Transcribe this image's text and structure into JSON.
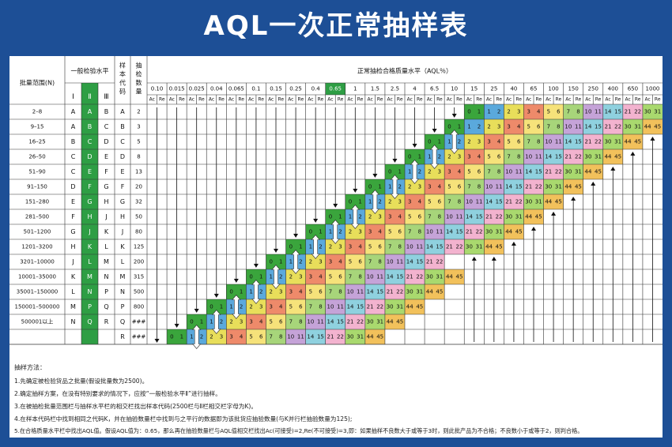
{
  "title": "AQL一次正常抽样表",
  "header": {
    "lot_range": "批量范围(N)",
    "general_level": "一般检验水平",
    "levels": [
      "Ⅰ",
      "Ⅱ",
      "Ⅲ"
    ],
    "code": "样本代码",
    "sample_size": "抽检数量",
    "aql_title": "正常抽检合格质量水平（AQL％）",
    "ac": "Ac",
    "re": "Re"
  },
  "aql_values": [
    "0.10",
    "0.015",
    "0.025",
    "0.04",
    "0.065",
    "0.1",
    "0.15",
    "0.25",
    "0.4",
    "0.65",
    "1",
    "1.5",
    "2.5",
    "4",
    "6.5",
    "10",
    "15",
    "25",
    "40",
    "65",
    "100",
    "150",
    "250",
    "400",
    "650",
    "1000"
  ],
  "highlight_aql_index": 9,
  "rows": [
    {
      "lot": "2–8",
      "l1": "A",
      "l2": "A",
      "l3": "B",
      "code": "A",
      "n": "2"
    },
    {
      "lot": "9–15",
      "l1": "A",
      "l2": "B",
      "l3": "C",
      "code": "B",
      "n": "3"
    },
    {
      "lot": "16–25",
      "l1": "B",
      "l2": "C",
      "l3": "D",
      "code": "C",
      "n": "5"
    },
    {
      "lot": "26–50",
      "l1": "C",
      "l2": "D",
      "l3": "E",
      "code": "D",
      "n": "8"
    },
    {
      "lot": "51–90",
      "l1": "C",
      "l2": "E",
      "l3": "F",
      "code": "E",
      "n": "13"
    },
    {
      "lot": "91–150",
      "l1": "D",
      "l2": "F",
      "l3": "G",
      "code": "F",
      "n": "20"
    },
    {
      "lot": "151–280",
      "l1": "E",
      "l2": "G",
      "l3": "H",
      "code": "G",
      "n": "32"
    },
    {
      "lot": "281–500",
      "l1": "F",
      "l2": "H",
      "l3": "J",
      "code": "H",
      "n": "50"
    },
    {
      "lot": "501–1200",
      "l1": "G",
      "l2": "J",
      "l3": "K",
      "code": "J",
      "n": "80"
    },
    {
      "lot": "1201–3200",
      "l1": "H",
      "l2": "K",
      "l3": "L",
      "code": "K",
      "n": "125"
    },
    {
      "lot": "3201–10000",
      "l1": "J",
      "l2": "L",
      "l3": "M",
      "code": "L",
      "n": "200"
    },
    {
      "lot": "10001–35000",
      "l1": "K",
      "l2": "M",
      "l3": "N",
      "code": "M",
      "n": "315"
    },
    {
      "lot": "35001–150000",
      "l1": "L",
      "l2": "N",
      "l3": "P",
      "code": "N",
      "n": "500"
    },
    {
      "lot": "150001–500000",
      "l1": "M",
      "l2": "P",
      "l3": "Q",
      "code": "P",
      "n": "800"
    },
    {
      "lot": "500001以上",
      "l1": "N",
      "l2": "Q",
      "l3": "R",
      "code": "Q",
      "n": "###"
    },
    {
      "lot": "",
      "l1": "",
      "l2": "",
      "l3": "",
      "code": "R",
      "n": "###"
    }
  ],
  "acre_sequence": [
    [
      "0",
      "1"
    ],
    [
      "1",
      "2"
    ],
    [
      "2",
      "3"
    ],
    [
      "3",
      "4"
    ],
    [
      "5",
      "6"
    ],
    [
      "7",
      "8"
    ],
    [
      "10",
      "11"
    ],
    [
      "14",
      "15"
    ],
    [
      "21",
      "22"
    ],
    [
      "30",
      "31"
    ],
    [
      "44",
      "45"
    ]
  ],
  "notes": {
    "heading": "抽样方法：",
    "lines": [
      "1.先确定被检验货品之批量(假设批量数为2500)。",
      "2.确定抽样方案，在没有特别要求的情况下，应按“一般检验水平Ⅱ”进行抽样。",
      "3.在被抽检批量范围栏与抽样水平栏的相交栏找出样本代码(2500栏与Ⅱ栏相交栏字母为K)。",
      "4.在样本代码栏中找到相同之代码K，并在抽验数量栏中找到与之平行的数据即为该批货应抽验数量(与K并行栏抽验数量为125);",
      "5.在合格质量水平栏中找出AQL值。假设AQL值为：0.65，那么再在抽验数量栏与AQL值相交栏找出Ac(可接受)=2,Re(不可接受)=3,即：如果抽样不良数大于或等于3时，则此批产品为不合格；不良数小于或等于2，则判合格。"
    ]
  },
  "colors": {
    "frame": "#1d4f96",
    "level2_column": "#2e9e44",
    "highlight_header": "#2e9e44",
    "acre_0_1": "#3aa53c",
    "acre_1_2": "#5aa9dc",
    "acre_2_3": "#e8de5a",
    "acre_3_4": "#ee8a6a",
    "acre_5_6": "#f6e27a",
    "acre_7_8": "#a7d57a",
    "acre_10_11": "#c5a3d8",
    "acre_14_15": "#8fd1df",
    "acre_21_22": "#f3b3cf",
    "acre_30_31": "#a9d96e",
    "acre_44_45": "#f2c15b"
  }
}
